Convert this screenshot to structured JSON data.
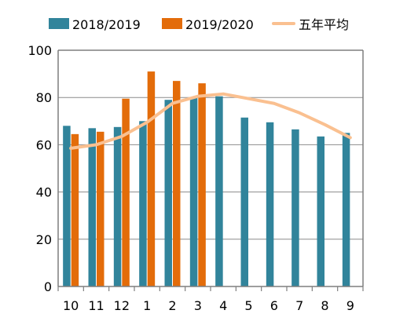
{
  "chart_data": {
    "type": "bar",
    "categories": [
      "10",
      "11",
      "12",
      "1",
      "2",
      "3",
      "4",
      "5",
      "6",
      "7",
      "8",
      "9"
    ],
    "series": [
      {
        "name": "2018/2019",
        "type": "bar",
        "color": "#31849B",
        "values": [
          68,
          67,
          67.5,
          70,
          79,
          80,
          80.5,
          71.5,
          69.5,
          66.5,
          63.5,
          65
        ]
      },
      {
        "name": "2019/2020",
        "type": "bar",
        "color": "#E36C0A",
        "values": [
          64.5,
          65.5,
          79.5,
          91,
          87,
          86,
          null,
          null,
          null,
          null,
          null,
          null
        ]
      },
      {
        "name": "五年平均",
        "type": "line",
        "color": "#FAC090",
        "values": [
          58.5,
          60,
          63.5,
          69.5,
          77.5,
          80.5,
          81.5,
          79.5,
          77.5,
          73.5,
          68.5,
          63
        ]
      }
    ],
    "yticks": [
      "0",
      "20",
      "40",
      "60",
      "80",
      "100"
    ],
    "ylim": [
      0,
      100
    ],
    "grid": true,
    "legend": "top"
  }
}
